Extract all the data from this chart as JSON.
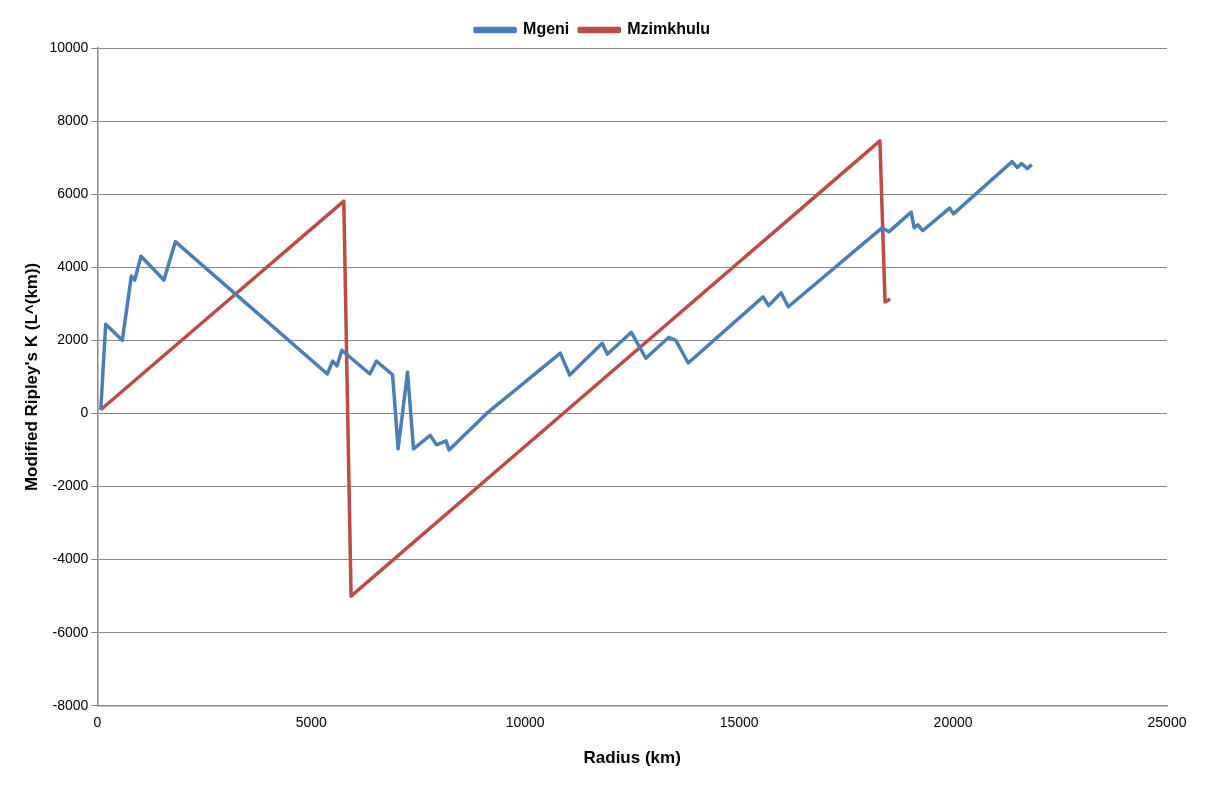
{
  "chart_data": {
    "type": "line",
    "xlabel": "Radius (km)",
    "ylabel": "Modified Ripley's K (L^(km))",
    "xlim": [
      0,
      25000
    ],
    "xticks": [
      0,
      5000,
      10000,
      15000,
      20000,
      25000
    ],
    "ylim": [
      -8000,
      10000
    ],
    "yticks": [
      -8000,
      -6000,
      -4000,
      -2000,
      0,
      2000,
      4000,
      6000,
      8000,
      10000
    ],
    "grid": "y",
    "legend": "top",
    "marker": "none",
    "line_style": "solid",
    "series": [
      {
        "name": "Mgeni",
        "color": "#4a7ebb",
        "x": [
          80,
          195,
          584,
          795,
          875,
          1020,
          1556,
          1824,
          5375,
          5500,
          5600,
          5715,
          6370,
          6520,
          6860,
          6900,
          7030,
          7250,
          7390,
          7780,
          7930,
          8150,
          8220,
          9100,
          10820,
          11040,
          11800,
          11920,
          12480,
          12820,
          13350,
          13520,
          13810,
          15560,
          15690,
          15980,
          16150,
          18340,
          18500,
          19020,
          19090,
          19180,
          19290,
          19920,
          20010,
          21380,
          21500,
          21600,
          21740,
          21840
        ],
        "values": [
          100,
          2440,
          2000,
          3760,
          3650,
          4300,
          3650,
          4700,
          1080,
          1430,
          1300,
          1730,
          1080,
          1430,
          1100,
          1060,
          -970,
          1130,
          -970,
          -600,
          -860,
          -750,
          -1000,
          0,
          1650,
          1050,
          1920,
          1620,
          2220,
          1510,
          2080,
          2000,
          1380,
          3190,
          2950,
          3300,
          2920,
          5080,
          4970,
          5510,
          5080,
          5160,
          5000,
          5620,
          5460,
          6890,
          6730,
          6840,
          6700,
          6810
        ]
      },
      {
        "name": "Mzimkhulu",
        "color": "#be4b48",
        "x": [
          80,
          5760,
          5930,
          18290,
          18410,
          18530
        ],
        "values": [
          100,
          5810,
          -5000,
          7460,
          3050,
          3130
        ]
      }
    ]
  }
}
